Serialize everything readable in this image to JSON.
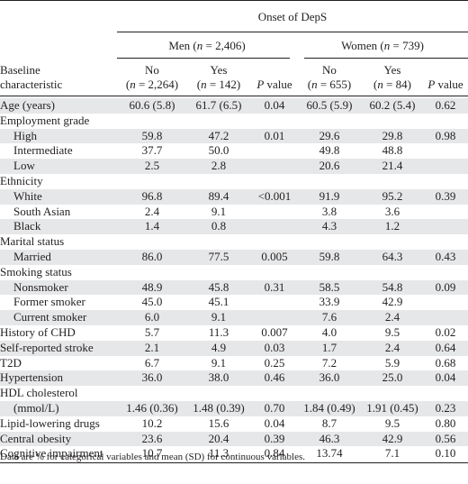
{
  "header": {
    "super": "Onset of DepS",
    "group_men": "Men (n = 2,406)",
    "group_women": "Women (n = 739)",
    "row_label_1": "Baseline",
    "row_label_2": "characteristic",
    "columns": [
      {
        "line1": "No",
        "line2": "(n = 2,264)"
      },
      {
        "line1": "Yes",
        "line2": "(n = 142)"
      },
      {
        "line1": "P value",
        "line2": ""
      },
      {
        "line1": "No",
        "line2": "(n = 655)"
      },
      {
        "line1": "Yes",
        "line2": "(n = 84)"
      },
      {
        "line1": "P value",
        "line2": ""
      }
    ]
  },
  "rows": [
    {
      "label": "Age (years)",
      "indent": false,
      "shade": true,
      "cells": [
        "60.6 (5.8)",
        "61.7 (6.5)",
        "0.04",
        "60.5 (5.9)",
        "60.2 (5.4)",
        "0.62"
      ]
    },
    {
      "label": "Employment grade",
      "indent": false,
      "shade": false,
      "cells": [
        "",
        "",
        "",
        "",
        "",
        ""
      ]
    },
    {
      "label": "High",
      "indent": true,
      "shade": true,
      "cells": [
        "59.8",
        "47.2",
        "0.01",
        "29.6",
        "29.8",
        "0.98"
      ]
    },
    {
      "label": "Intermediate",
      "indent": true,
      "shade": false,
      "cells": [
        "37.7",
        "50.0",
        "",
        "49.8",
        "48.8",
        ""
      ]
    },
    {
      "label": "Low",
      "indent": true,
      "shade": true,
      "cells": [
        "2.5",
        "2.8",
        "",
        "20.6",
        "21.4",
        ""
      ]
    },
    {
      "label": "Ethnicity",
      "indent": false,
      "shade": false,
      "cells": [
        "",
        "",
        "",
        "",
        "",
        ""
      ]
    },
    {
      "label": "White",
      "indent": true,
      "shade": true,
      "cells": [
        "96.8",
        "89.4",
        "<0.001",
        "91.9",
        "95.2",
        "0.39"
      ]
    },
    {
      "label": "South Asian",
      "indent": true,
      "shade": false,
      "cells": [
        "2.4",
        "9.1",
        "",
        "3.8",
        "3.6",
        ""
      ]
    },
    {
      "label": "Black",
      "indent": true,
      "shade": true,
      "cells": [
        "1.4",
        "0.8",
        "",
        "4.3",
        "1.2",
        ""
      ]
    },
    {
      "label": "Marital status",
      "indent": false,
      "shade": false,
      "cells": [
        "",
        "",
        "",
        "",
        "",
        ""
      ]
    },
    {
      "label": "Married",
      "indent": true,
      "shade": true,
      "cells": [
        "86.0",
        "77.5",
        "0.005",
        "59.8",
        "64.3",
        "0.43"
      ]
    },
    {
      "label": "Smoking status",
      "indent": false,
      "shade": false,
      "cells": [
        "",
        "",
        "",
        "",
        "",
        ""
      ]
    },
    {
      "label": "Nonsmoker",
      "indent": true,
      "shade": true,
      "cells": [
        "48.9",
        "45.8",
        "0.31",
        "58.5",
        "54.8",
        "0.09"
      ]
    },
    {
      "label": "Former smoker",
      "indent": true,
      "shade": false,
      "cells": [
        "45.0",
        "45.1",
        "",
        "33.9",
        "42.9",
        ""
      ]
    },
    {
      "label": "Current smoker",
      "indent": true,
      "shade": true,
      "cells": [
        "6.0",
        "9.1",
        "",
        "7.6",
        "2.4",
        ""
      ]
    },
    {
      "label": "History of CHD",
      "indent": false,
      "shade": false,
      "cells": [
        "5.7",
        "11.3",
        "0.007",
        "4.0",
        "9.5",
        "0.02"
      ]
    },
    {
      "label": "Self-reported stroke",
      "indent": false,
      "shade": true,
      "cells": [
        "2.1",
        "4.9",
        "0.03",
        "1.7",
        "2.4",
        "0.64"
      ]
    },
    {
      "label": "T2D",
      "indent": false,
      "shade": false,
      "cells": [
        "6.7",
        "9.1",
        "0.25",
        "7.2",
        "5.9",
        "0.68"
      ]
    },
    {
      "label": "Hypertension",
      "indent": false,
      "shade": true,
      "cells": [
        "36.0",
        "38.0",
        "0.46",
        "36.0",
        "25.0",
        "0.04"
      ]
    },
    {
      "label": "HDL cholesterol",
      "indent": false,
      "shade": false,
      "cells": [
        "",
        "",
        "",
        "",
        "",
        ""
      ]
    },
    {
      "label": "(mmol/L)",
      "indent": true,
      "shade": true,
      "cells": [
        "1.46 (0.36)",
        "1.48 (0.39)",
        "0.70",
        "1.84 (0.49)",
        "1.91 (0.45)",
        "0.23"
      ]
    },
    {
      "label": "Lipid-lowering drugs",
      "indent": false,
      "shade": false,
      "cells": [
        "10.2",
        "15.6",
        "0.04",
        "8.7",
        "9.5",
        "0.80"
      ]
    },
    {
      "label": "Central obesity",
      "indent": false,
      "shade": true,
      "cells": [
        "23.6",
        "20.4",
        "0.39",
        "46.3",
        "42.9",
        "0.56"
      ]
    },
    {
      "label": "Cognitive impairment",
      "indent": false,
      "shade": false,
      "cells": [
        "10.7",
        "11.3",
        "0.84",
        "13.74",
        "7.1",
        "0.10"
      ]
    }
  ],
  "footnote": "Data are % for categorical variables and mean (SD) for continuous variables."
}
